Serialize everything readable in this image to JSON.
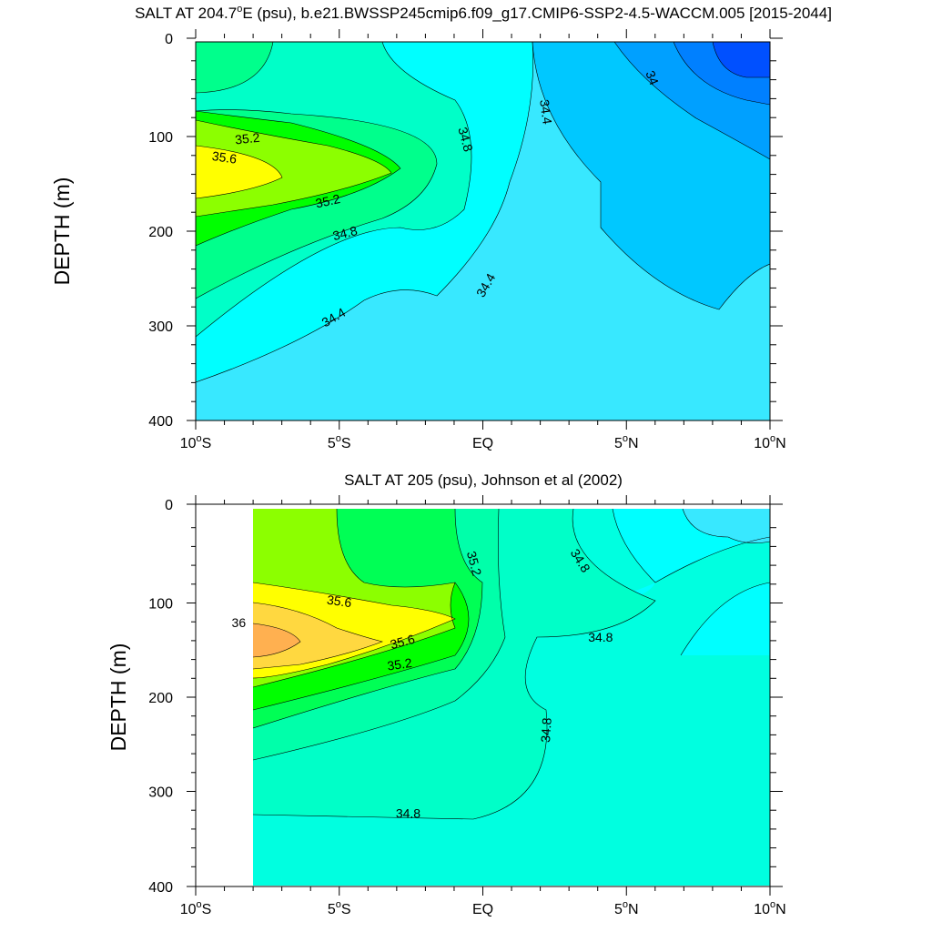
{
  "chart_data": [
    {
      "type": "contour",
      "title_main": "SALT AT 204.7",
      "title_deg": "o",
      "title_rest": "E (psu), b.e21.BWSSP245cmip6.f09_g17.CMIP6-SSP2-4.5-WACCM.005 [2015-2044]",
      "ylabel": "DEPTH (m)",
      "xlim": [
        -10,
        10
      ],
      "ylim": [
        0,
        400
      ],
      "y_inverted": true,
      "x_ticks": [
        {
          "value": -10,
          "num": "10",
          "deg": "o",
          "hemi": "S"
        },
        {
          "value": -5,
          "num": "5",
          "deg": "o",
          "hemi": "S"
        },
        {
          "value": 0,
          "num": "EQ",
          "deg": "",
          "hemi": ""
        },
        {
          "value": 5,
          "num": "5",
          "deg": "o",
          "hemi": "N"
        },
        {
          "value": 10,
          "num": "10",
          "deg": "o",
          "hemi": "N"
        }
      ],
      "y_ticks": [
        0,
        100,
        200,
        300,
        400
      ],
      "contour_levels": [
        33.8,
        34.0,
        34.2,
        34.4,
        34.6,
        34.8,
        35.0,
        35.2,
        35.4,
        35.6,
        35.8,
        36.0
      ],
      "colors": {
        "below_33.8": "#0050ff",
        "33.8": "#0080ff",
        "34.0": "#00a0ff",
        "34.2": "#00c8ff",
        "34.4": "#38e8ff",
        "34.6": "#00ffff",
        "34.8": "#00ffc8",
        "35.0": "#00ff8c",
        "35.2": "#00ff00",
        "35.4": "#8cff00",
        "35.6": "#ffff00",
        "35.8": "#ffd040",
        "36.0": "#ffb050"
      },
      "contour_labels": [
        {
          "text": "35.2",
          "x": -8.2,
          "y": 102,
          "angle": -6
        },
        {
          "text": "35.6",
          "x": -9.0,
          "y": 122,
          "angle": 8
        },
        {
          "text": "35.2",
          "x": -5.4,
          "y": 168,
          "angle": -12
        },
        {
          "text": "34.8",
          "x": -4.8,
          "y": 202,
          "angle": -14
        },
        {
          "text": "34.4",
          "x": -5.2,
          "y": 291,
          "angle": -30
        },
        {
          "text": "34.8",
          "x": -0.6,
          "y": 103,
          "angle": 75
        },
        {
          "text": "34.4",
          "x": 2.2,
          "y": 74,
          "angle": 82
        },
        {
          "text": "34.4",
          "x": 0.1,
          "y": 257,
          "angle": -60
        },
        {
          "text": "34",
          "x": 5.9,
          "y": 38,
          "angle": 68
        }
      ]
    },
    {
      "type": "contour",
      "title_main": "SALT AT 205 (psu), Johnson et al (2002)",
      "title_deg": "",
      "title_rest": "",
      "ylabel": "DEPTH (m)",
      "xlim": [
        -10,
        10
      ],
      "ylim": [
        0,
        400
      ],
      "y_inverted": true,
      "data_x_start": -8,
      "x_ticks": [
        {
          "value": -10,
          "num": "10",
          "deg": "o",
          "hemi": "S"
        },
        {
          "value": -5,
          "num": "5",
          "deg": "o",
          "hemi": "S"
        },
        {
          "value": 0,
          "num": "EQ",
          "deg": "",
          "hemi": ""
        },
        {
          "value": 5,
          "num": "5",
          "deg": "o",
          "hemi": "N"
        },
        {
          "value": 10,
          "num": "10",
          "deg": "o",
          "hemi": "N"
        }
      ],
      "y_ticks": [
        0,
        100,
        200,
        300,
        400
      ],
      "contour_levels": [
        34.4,
        34.6,
        34.8,
        35.0,
        35.2,
        35.4,
        35.6,
        35.8,
        36.0,
        36.2
      ],
      "colors": {
        "34.4": "#38e8ff",
        "34.6": "#00ffff",
        "34.8": "#00ffe0",
        "35.0": "#00ffaa",
        "35.2": "#00ff55",
        "35.4": "#00ff00",
        "35.6": "#8cff00",
        "35.8": "#ffff00",
        "36.0": "#ffd840",
        "36.2": "#ffb050"
      },
      "contour_labels": [
        {
          "text": "35.6",
          "x": -5.0,
          "y": 98,
          "angle": 8
        },
        {
          "text": "36",
          "x": -8.5,
          "y": 121,
          "angle": 0
        },
        {
          "text": "35.6",
          "x": -2.8,
          "y": 141,
          "angle": -15
        },
        {
          "text": "35.2",
          "x": -2.9,
          "y": 165,
          "angle": -8
        },
        {
          "text": "35.2",
          "x": -0.3,
          "y": 58,
          "angle": 75
        },
        {
          "text": "34.8",
          "x": 3.4,
          "y": 55,
          "angle": 58
        },
        {
          "text": "34.8",
          "x": 4.1,
          "y": 136,
          "angle": 0
        },
        {
          "text": "34.8",
          "x": 2.2,
          "y": 235,
          "angle": -86
        },
        {
          "text": "34.8",
          "x": -2.6,
          "y": 323,
          "angle": 0
        }
      ]
    }
  ]
}
